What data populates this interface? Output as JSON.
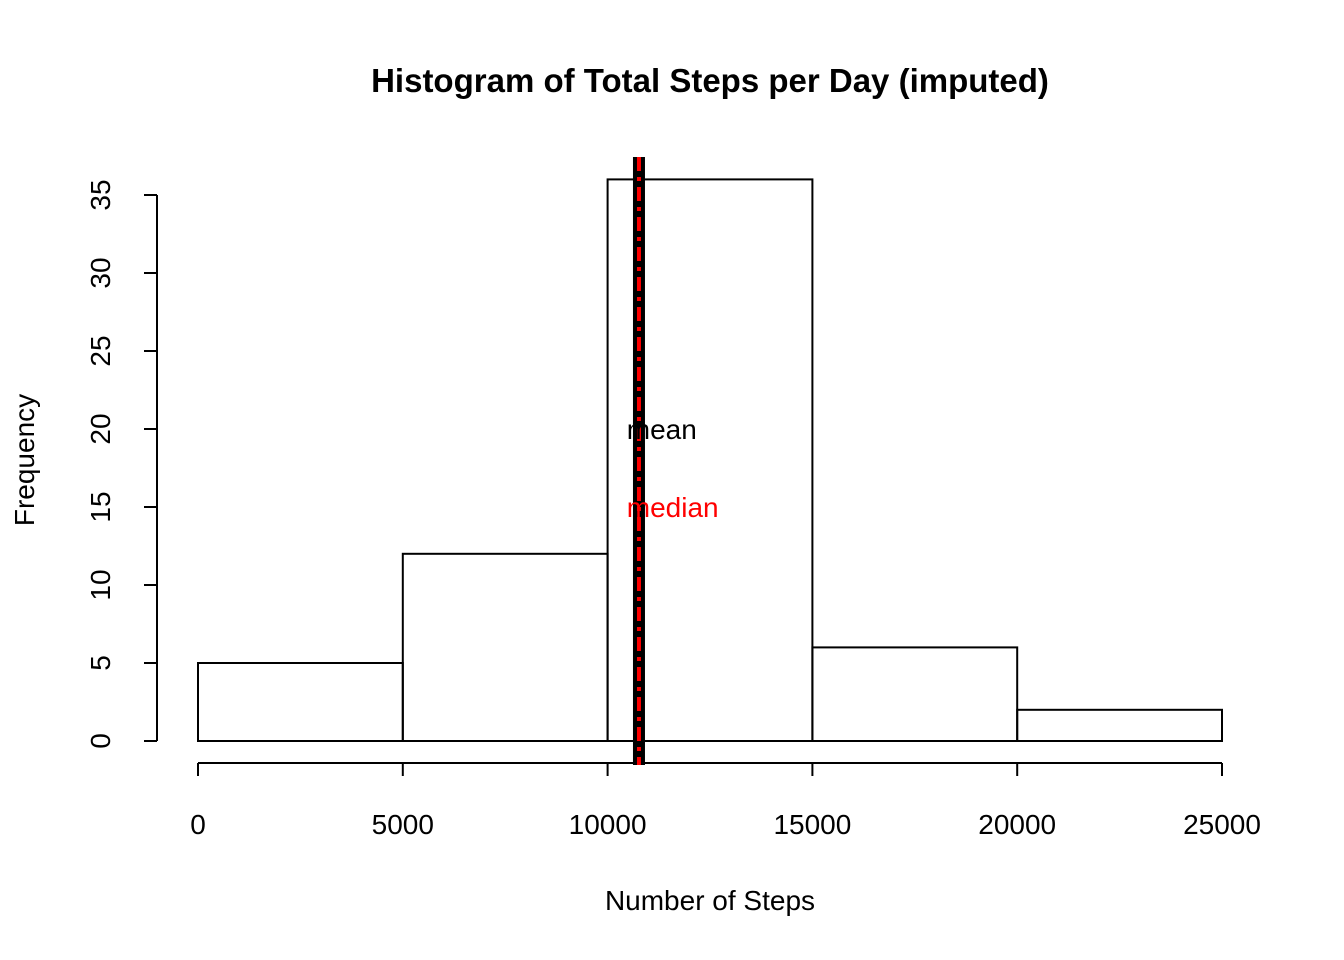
{
  "chart_data": {
    "type": "bar",
    "title": "Histogram of Total Steps per Day (imputed)",
    "xlabel": "Number of Steps",
    "ylabel": "Frequency",
    "bins": [
      {
        "start": 0,
        "end": 5000,
        "count": 5
      },
      {
        "start": 5000,
        "end": 10000,
        "count": 12
      },
      {
        "start": 10000,
        "end": 15000,
        "count": 36
      },
      {
        "start": 15000,
        "end": 20000,
        "count": 6
      },
      {
        "start": 20000,
        "end": 25000,
        "count": 2
      }
    ],
    "xlim": [
      0,
      25000
    ],
    "ylim": [
      0,
      36
    ],
    "xticks": [
      "0",
      "5000",
      "10000",
      "15000",
      "20000",
      "25000"
    ],
    "yticks": [
      "0",
      "5",
      "10",
      "15",
      "20",
      "25",
      "30",
      "35"
    ],
    "mean": 10766,
    "median": 10766,
    "mean_color": "#000000",
    "median_color": "#ff0000",
    "annotations": [
      {
        "text": "mean",
        "color": "#000000",
        "x": 11200,
        "y": 20
      },
      {
        "text": "median",
        "color": "#ff0000",
        "x": 11200,
        "y": 15
      }
    ]
  }
}
